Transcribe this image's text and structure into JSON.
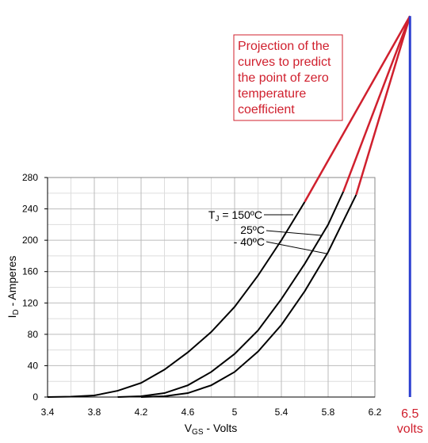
{
  "chart_data": {
    "type": "line",
    "x_label": {
      "main": "V",
      "sub": "GS",
      "rest": " - Volts"
    },
    "y_label": {
      "main": "I",
      "sub": "D",
      "rest": " - Amperes"
    },
    "xlim": [
      3.4,
      6.2
    ],
    "ylim": [
      0,
      280
    ],
    "xticks": [
      3.4,
      3.8,
      4.2,
      4.6,
      5.0,
      5.4,
      5.8,
      6.2
    ],
    "yticks": [
      0,
      40,
      80,
      120,
      160,
      200,
      240,
      280
    ],
    "grid": true,
    "series": [
      {
        "name": {
          "main": "T",
          "sub": "J",
          "rest": " = 150ºC"
        },
        "color": "#000000",
        "x": [
          3.4,
          3.6,
          3.8,
          4.0,
          4.2,
          4.4,
          4.6,
          4.8,
          5.0,
          5.2,
          5.4,
          5.6
        ],
        "values": [
          0,
          0.5,
          2,
          8,
          18,
          35,
          57,
          83,
          115,
          155,
          200,
          249
        ]
      },
      {
        "name": {
          "main": "25ºC"
        },
        "color": "#000000",
        "x": [
          4.0,
          4.2,
          4.4,
          4.6,
          4.8,
          5.0,
          5.2,
          5.4,
          5.6,
          5.8,
          5.93
        ],
        "values": [
          0,
          1,
          5,
          15,
          32,
          55,
          85,
          125,
          170,
          220,
          262
        ]
      },
      {
        "name": {
          "main": "- 40ºC"
        },
        "color": "#000000",
        "x": [
          4.2,
          4.4,
          4.6,
          4.8,
          5.0,
          5.2,
          5.4,
          5.6,
          5.8,
          6.04
        ],
        "values": [
          0,
          1,
          5,
          15,
          32,
          58,
          92,
          135,
          185,
          258
        ]
      }
    ],
    "projection": {
      "x": 6.5,
      "y": 486,
      "x_label": "6.5",
      "unit_label": "volts",
      "line_color": "#d0202e",
      "marker_color": "#2b3fd0"
    },
    "annotation": {
      "lines": [
        "Projection of the",
        "curves to predict",
        "the point of zero",
        "temperature",
        "coefficient"
      ],
      "color": "#d0202e"
    }
  }
}
